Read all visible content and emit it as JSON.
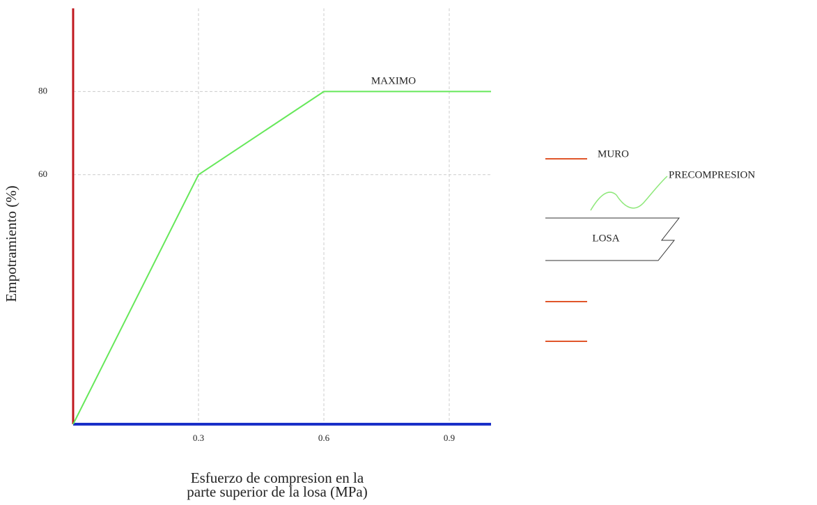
{
  "chart_data": {
    "type": "line",
    "x": [
      0,
      0.3,
      0.6,
      1.0
    ],
    "values": [
      0,
      60,
      80,
      80
    ],
    "color": "#66e85a",
    "xlim": [
      0,
      1.0
    ],
    "ylim": [
      0,
      100
    ],
    "xticks": [
      0.3,
      0.6,
      0.9
    ],
    "yticks": [
      60,
      80
    ],
    "grid": true,
    "ylabel": "Empotramiento (%)",
    "xlabel": [
      "Esfuerzo de compresion en la",
      "parte superior de la losa (MPa)"
    ],
    "annotation": "MAXIMO"
  },
  "diagram": {
    "wall": "MURO",
    "prestress": "PRECOMPRESION",
    "slab": "LOSA"
  }
}
